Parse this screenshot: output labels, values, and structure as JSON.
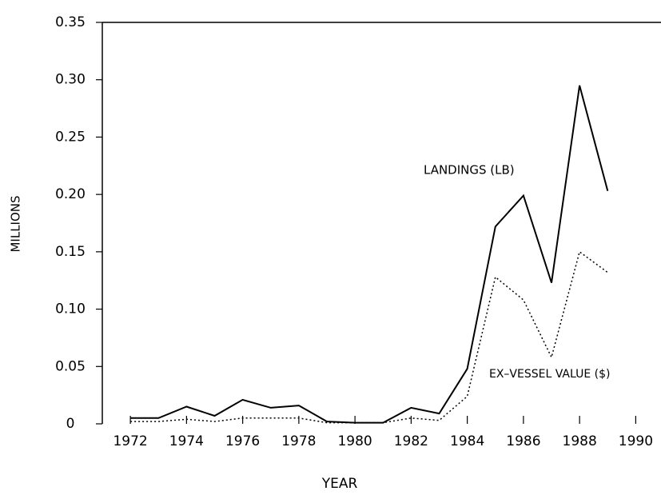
{
  "chart_data": {
    "type": "line",
    "x_label": "YEAR",
    "y_label": "MILLIONS",
    "x": [
      1972,
      1973,
      1974,
      1975,
      1976,
      1977,
      1978,
      1979,
      1980,
      1981,
      1982,
      1983,
      1984,
      1985,
      1986,
      1987,
      1988,
      1989
    ],
    "series": [
      {
        "name": "LANDINGS (LB)",
        "color": "#000000",
        "dash": "solid",
        "values": [
          0.005,
          0.005,
          0.015,
          0.007,
          0.021,
          0.014,
          0.016,
          0.002,
          0.001,
          0.001,
          0.014,
          0.009,
          0.048,
          0.172,
          0.199,
          0.123,
          0.295,
          0.203
        ]
      },
      {
        "name": "EX–VESSEL VALUE ($)",
        "color": "#000000",
        "dash": "dotted",
        "values": [
          0.002,
          0.002,
          0.004,
          0.002,
          0.005,
          0.005,
          0.005,
          0.001,
          0.001,
          0.001,
          0.005,
          0.003,
          0.024,
          0.128,
          0.108,
          0.058,
          0.15,
          0.132
        ]
      }
    ],
    "xlim": [
      1971,
      1990.9
    ],
    "xticks": [
      1972,
      1974,
      1976,
      1978,
      1980,
      1982,
      1984,
      1986,
      1988,
      1990
    ],
    "ylim": [
      0,
      0.35
    ],
    "yticks": [
      0,
      0.05,
      {
        "value": 0.1,
        "label": "0.10"
      },
      0.15,
      {
        "value": 0.2,
        "label": "0.20"
      },
      0.25,
      {
        "value": 0.3,
        "label": "0.30"
      },
      0.35
    ],
    "grid": false
  }
}
